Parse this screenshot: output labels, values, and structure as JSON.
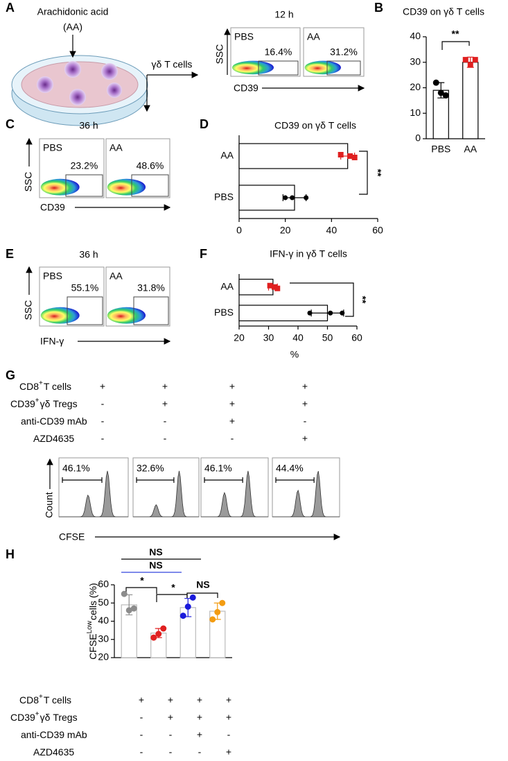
{
  "panels": [
    "A",
    "B",
    "C",
    "D",
    "E",
    "F",
    "G",
    "H"
  ],
  "panel_a": {
    "label": "Arachidonic acid",
    "abbr": "(AA)",
    "cells": "γδ T cells",
    "time": "12 h",
    "groups": [
      "PBS",
      "AA"
    ],
    "gates": [
      "16.4%",
      "31.2%"
    ],
    "y_axis": "SSC",
    "x_axis": "CD39"
  },
  "panel_c": {
    "time": "36 h",
    "groups": [
      "PBS",
      "AA"
    ],
    "gates": [
      "23.2%",
      "48.6%"
    ],
    "y_axis": "SSC",
    "x_axis": "CD39"
  },
  "panel_e": {
    "time": "36 h",
    "groups": [
      "PBS",
      "AA"
    ],
    "gates": [
      "55.1%",
      "31.8%"
    ],
    "y_axis": "SSC",
    "x_axis": "IFN-γ"
  },
  "panel_g": {
    "gates": [
      "46.1%",
      "32.6%",
      "46.1%",
      "44.4%"
    ],
    "y_axis": "Count",
    "x_axis": "CFSE"
  },
  "conditions": {
    "labels": [
      [
        "CD8",
        "+",
        "T cells"
      ],
      [
        "CD39",
        "+",
        "γδ Tregs"
      ],
      [
        "anti-CD39 mAb"
      ],
      [
        "AZD4635"
      ]
    ],
    "signs": [
      [
        "+",
        "+",
        "+",
        "+"
      ],
      [
        "-",
        "+",
        "+",
        "+"
      ],
      [
        "-",
        "-",
        "+",
        "-"
      ],
      [
        "-",
        "-",
        "-",
        "+"
      ]
    ]
  },
  "chart_data": [
    {
      "type": "bar",
      "title": "CD39 on γδ T cells",
      "categories": [
        "PBS",
        "AA"
      ],
      "values": [
        19,
        30
      ],
      "errors": [
        3,
        2
      ],
      "points": [
        [
          22,
          18,
          17
        ],
        [
          31,
          29,
          31
        ]
      ],
      "colors": [
        "#000000",
        "#e02020"
      ],
      "markers": [
        "circle",
        "square"
      ],
      "ylim": [
        0,
        40
      ],
      "yticks": [
        0,
        10,
        20,
        30,
        40
      ],
      "annotations": [
        "**"
      ]
    },
    {
      "type": "hbar",
      "title": "CD39 on γδ T cells",
      "categories": [
        "AA",
        "PBS"
      ],
      "values": [
        47,
        24
      ],
      "errors": [
        3,
        5
      ],
      "points": [
        [
          44,
          48,
          50
        ],
        [
          20,
          23,
          29
        ]
      ],
      "colors": [
        "#e02020",
        "#000000"
      ],
      "markers": [
        "square",
        "circle"
      ],
      "xlim": [
        0,
        60
      ],
      "xticks": [
        0,
        20,
        40,
        60
      ],
      "annotations": [
        "**"
      ]
    },
    {
      "type": "hbar",
      "title": "IFN-γ in γδ T cells",
      "xlabel": "%",
      "categories": [
        "AA",
        "PBS"
      ],
      "values": [
        31.5,
        50
      ],
      "errors": [
        1.5,
        5.5
      ],
      "points": [
        [
          30.5,
          32,
          33
        ],
        [
          44,
          51,
          55
        ]
      ],
      "colors": [
        "#e02020",
        "#000000"
      ],
      "markers": [
        "square",
        "circle"
      ],
      "xlim": [
        20,
        60
      ],
      "xticks": [
        20,
        30,
        40,
        50,
        60
      ],
      "annotations": [
        "**"
      ]
    },
    {
      "type": "bar",
      "ylabel": [
        "CFSE",
        "Low",
        "cells (%)"
      ],
      "values": [
        49,
        33.5,
        47.5,
        45.5
      ],
      "errors": [
        5.5,
        2.5,
        5,
        4.5
      ],
      "points": [
        [
          55,
          46,
          47
        ],
        [
          31,
          33,
          36
        ],
        [
          43,
          48,
          53
        ],
        [
          41,
          45,
          50
        ]
      ],
      "colors": [
        "#8c8c8c",
        "#e02020",
        "#1a1adb",
        "#f39c12"
      ],
      "markers": [
        "circle",
        "circle",
        "circle",
        "circle"
      ],
      "bar_stroke": "#bbbbbb",
      "ylim": [
        20,
        60
      ],
      "yticks": [
        20,
        30,
        40,
        50,
        60
      ],
      "annotations": [
        "NS",
        "NS",
        "*",
        "*",
        "NS"
      ]
    }
  ]
}
